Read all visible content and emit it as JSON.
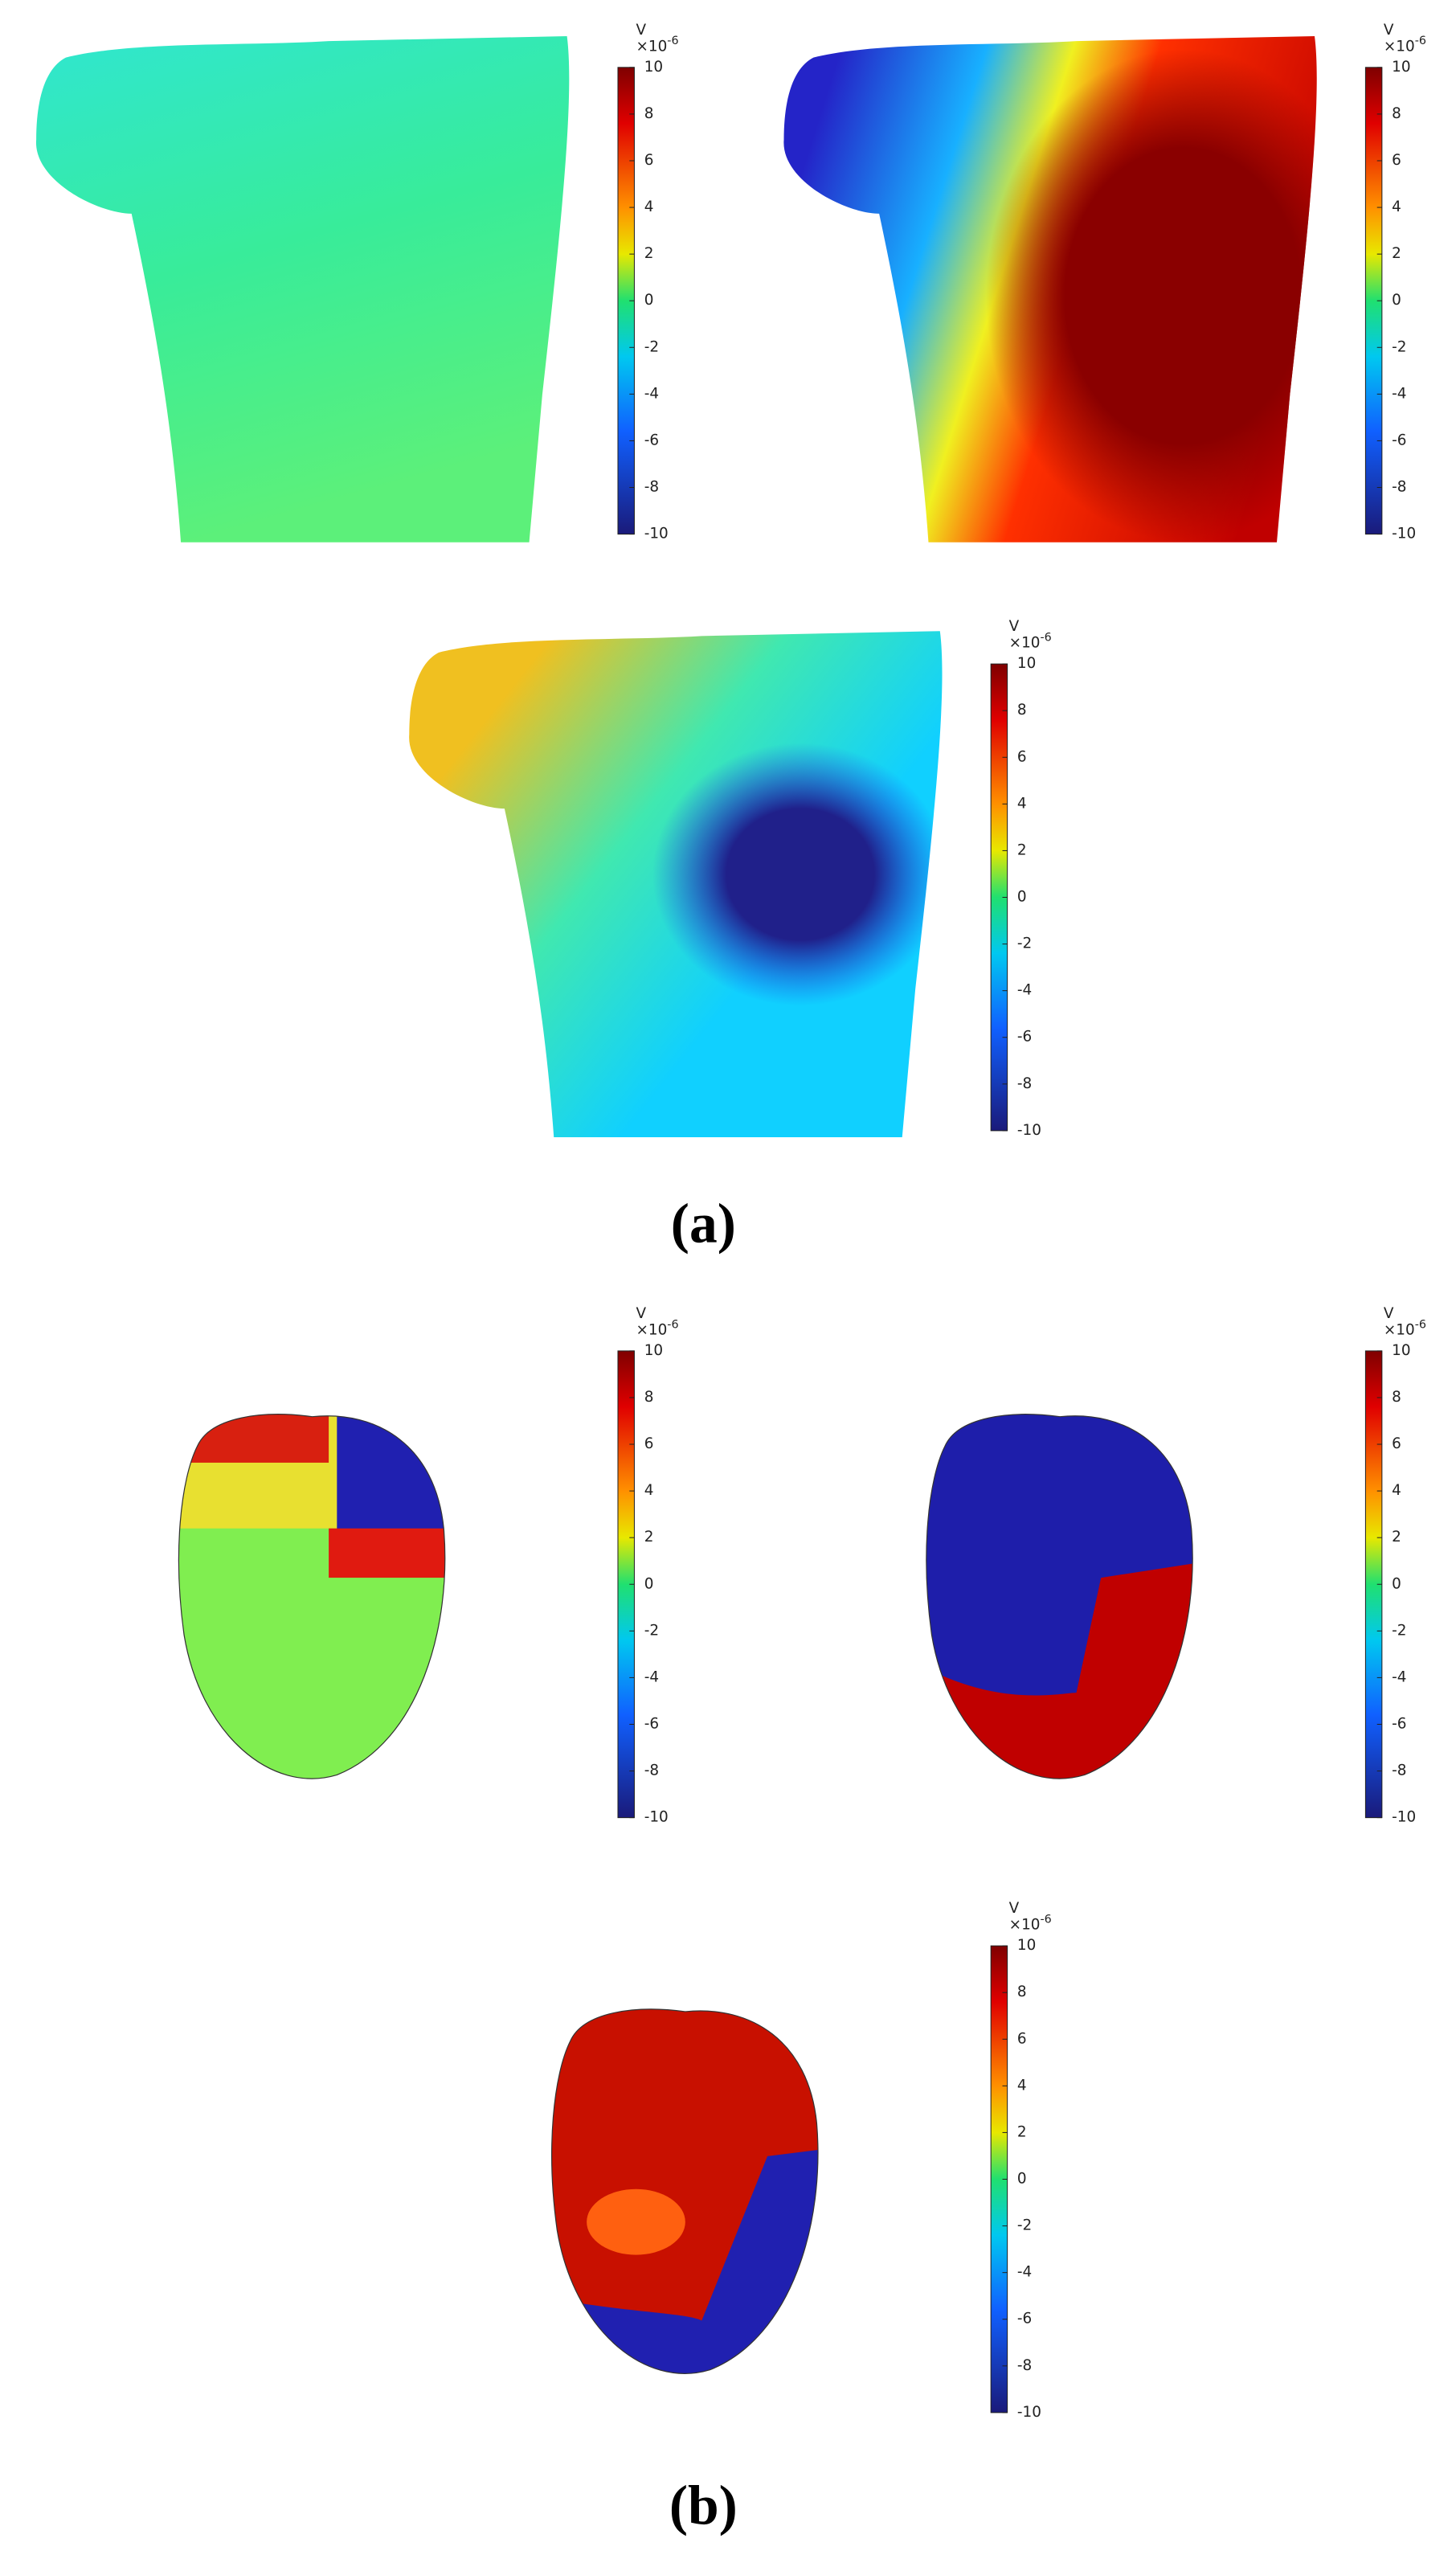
{
  "figure": {
    "panels": [
      {
        "label": "(a)",
        "plots": [
          {
            "colorbar": {
              "unit": "V",
              "multiplier": "×10",
              "exponent": "-6",
              "lim": [
                -10,
                10
              ],
              "ticks": [
                10,
                8,
                6,
                4,
                2,
                0,
                -2,
                -4,
                -6,
                -8,
                -10
              ]
            }
          },
          {
            "colorbar": {
              "unit": "V",
              "multiplier": "×10",
              "exponent": "-6",
              "lim": [
                -10,
                10
              ],
              "ticks": [
                10,
                8,
                6,
                4,
                2,
                0,
                -2,
                -4,
                -6,
                -8,
                -10
              ]
            }
          },
          {
            "colorbar": {
              "unit": "V",
              "multiplier": "×10",
              "exponent": "-6",
              "lim": [
                -10,
                10
              ],
              "ticks": [
                10,
                8,
                6,
                4,
                2,
                0,
                -2,
                -4,
                -6,
                -8,
                -10
              ]
            }
          }
        ]
      },
      {
        "label": "(b)",
        "plots": [
          {
            "colorbar": {
              "unit": "V",
              "multiplier": "×10",
              "exponent": "-6",
              "lim": [
                -10,
                10
              ],
              "ticks": [
                10,
                8,
                6,
                4,
                2,
                0,
                -2,
                -4,
                -6,
                -8,
                -10
              ]
            }
          },
          {
            "colorbar": {
              "unit": "V",
              "multiplier": "×10",
              "exponent": "-6",
              "lim": [
                -10,
                10
              ],
              "ticks": [
                10,
                8,
                6,
                4,
                2,
                0,
                -2,
                -4,
                -6,
                -8,
                -10
              ]
            }
          },
          {
            "colorbar": {
              "unit": "V",
              "multiplier": "×10",
              "exponent": "-6",
              "lim": [
                -10,
                10
              ],
              "ticks": [
                10,
                8,
                6,
                4,
                2,
                0,
                -2,
                -4,
                -6,
                -8,
                -10
              ]
            }
          }
        ]
      }
    ]
  }
}
